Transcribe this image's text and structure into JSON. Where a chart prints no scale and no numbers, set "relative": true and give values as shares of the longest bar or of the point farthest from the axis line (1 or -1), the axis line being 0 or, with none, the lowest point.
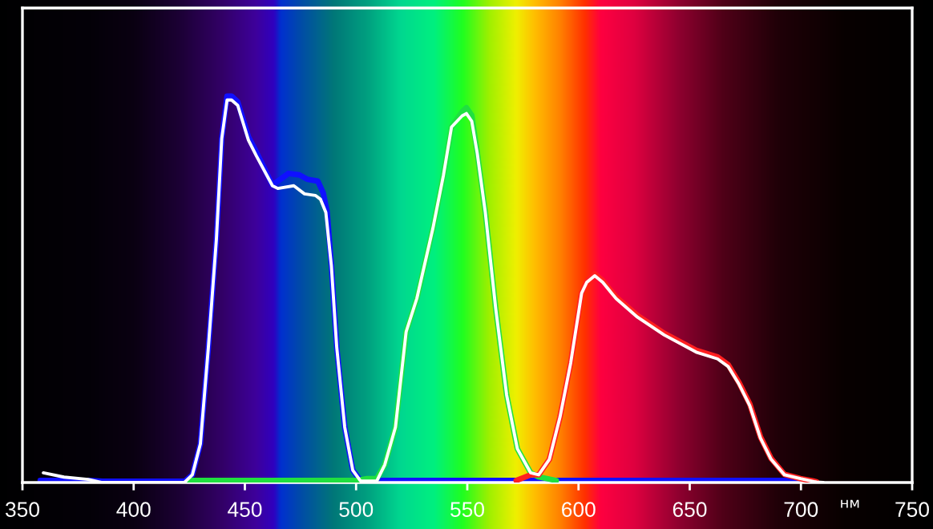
{
  "chart_data": {
    "type": "line",
    "relative": true,
    "xlabel": "нм",
    "xlim": [
      350,
      750
    ],
    "xticks": [
      350,
      400,
      450,
      500,
      550,
      600,
      650,
      700,
      750
    ],
    "tick_labels": "x",
    "grid": false,
    "line_style": "solid",
    "series": [
      {
        "color": "#1010ff",
        "x": [
          358,
          369,
          380,
          386,
          423,
          426.4,
          430,
          433.6,
          437.2,
          439.6,
          442,
          444,
          446.8,
          451.6,
          455.2,
          462.4,
          466,
          469.6,
          474.5,
          478,
          482.8,
          485.2,
          487,
          488.9,
          491.3,
          494.9,
          498.5,
          502,
          510,
          700
        ],
        "values": [
          0.005,
          0.005,
          0.005,
          0.003,
          0.003,
          0.02,
          0.1,
          0.35,
          0.63,
          0.89,
          1.0,
          1.0,
          0.985,
          0.895,
          0.855,
          0.77,
          0.785,
          0.8,
          0.796,
          0.785,
          0.78,
          0.75,
          0.7,
          0.56,
          0.35,
          0.143,
          0.032,
          0.005,
          0.005,
          0.005
        ]
      },
      {
        "color": "#20e040",
        "x": [
          425,
          500,
          505,
          509.3,
          512.9,
          517.7,
          522.5,
          527.3,
          534.5,
          539.3,
          542.9,
          547.7,
          549.6,
          552,
          554.5,
          558.1,
          562.8,
          567.7,
          572.5,
          578.5,
          582,
          590
        ],
        "values": [
          0.005,
          0.005,
          0.01,
          0.01,
          0.046,
          0.143,
          0.39,
          0.476,
          0.657,
          0.796,
          0.92,
          0.96,
          0.97,
          0.95,
          0.851,
          0.699,
          0.449,
          0.226,
          0.0875,
          0.025,
          0.015,
          0.005
        ]
      },
      {
        "color": "#ff2020",
        "x": [
          572,
          578.5,
          582.1,
          586.9,
          591.7,
          596.5,
          601.4,
          603.7,
          607.3,
          610.9,
          616.9,
          626.5,
          638.5,
          652.9,
          662.5,
          667.3,
          672.2,
          677,
          681.8,
          686.6,
          692.6,
          699.8,
          707
        ],
        "values": [
          0.005,
          0.02,
          0.02,
          0.06,
          0.17,
          0.31,
          0.49,
          0.52,
          0.54,
          0.522,
          0.48,
          0.432,
          0.386,
          0.342,
          0.325,
          0.305,
          0.258,
          0.203,
          0.118,
          0.062,
          0.021,
          0.01,
          0.002
        ]
      },
      {
        "color": "#ffffff",
        "x": [
          359.4,
          368.7,
          379.5,
          385.5,
          422.8,
          426.4,
          430,
          433.6,
          437.2,
          439.6,
          442,
          444,
          446.8,
          451.6,
          455.2,
          462.4,
          464.8,
          472,
          476.8,
          481.7,
          484,
          486.4,
          488.9,
          491.3,
          494.9,
          498.5,
          502,
          509.3,
          512.9,
          517.7,
          522.5,
          527.3,
          534.5,
          539.3,
          542.9,
          547.7,
          549.6,
          552,
          554.5,
          558.1,
          562.8,
          567.7,
          572.5,
          578.5,
          582.1,
          586.9,
          591.7,
          596.5,
          601.4,
          603.7,
          607.3,
          610.9,
          616.9,
          626.5,
          638.5,
          652.9,
          662.5,
          667.3,
          672.2,
          677,
          681.8,
          686.6,
          692.6,
          699.8,
          707,
          710
        ],
        "values": [
          0.025,
          0.014,
          0.008,
          0.0,
          0.0,
          0.02,
          0.1,
          0.35,
          0.63,
          0.89,
          0.99,
          0.99,
          0.976,
          0.886,
          0.845,
          0.768,
          0.761,
          0.768,
          0.747,
          0.743,
          0.733,
          0.699,
          0.56,
          0.35,
          0.143,
          0.032,
          0.004,
          0.004,
          0.046,
          0.143,
          0.39,
          0.476,
          0.657,
          0.796,
          0.92,
          0.949,
          0.955,
          0.935,
          0.851,
          0.699,
          0.449,
          0.226,
          0.0875,
          0.025,
          0.02,
          0.06,
          0.17,
          0.31,
          0.49,
          0.518,
          0.535,
          0.518,
          0.476,
          0.428,
          0.382,
          0.3375,
          0.32,
          0.3,
          0.254,
          0.199,
          0.115,
          0.06,
          0.02,
          0.01,
          0.001,
          0.0
        ]
      }
    ]
  }
}
